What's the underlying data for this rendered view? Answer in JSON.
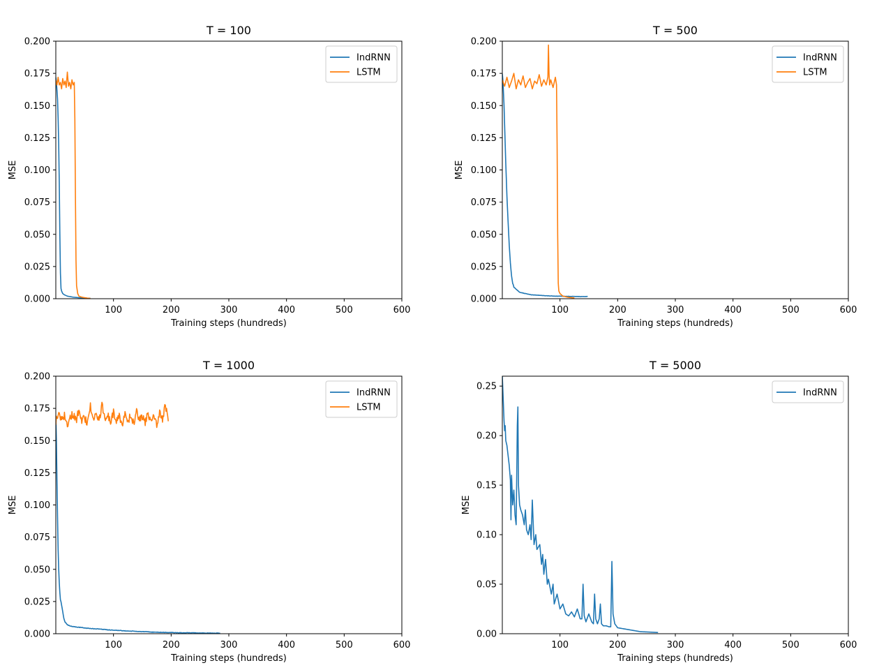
{
  "chart_data": [
    {
      "type": "line",
      "title": "T = 100",
      "xlabel": "Training steps (hundreds)",
      "ylabel": "MSE",
      "xlim": [
        0,
        600
      ],
      "ylim": [
        0,
        0.2
      ],
      "xticks": [
        100,
        200,
        300,
        400,
        500,
        600
      ],
      "xtick_labels": [
        "100",
        "200",
        "300",
        "400",
        "500",
        "600"
      ],
      "yticks": [
        0,
        0.025,
        0.05,
        0.075,
        0.1,
        0.125,
        0.15,
        0.175,
        0.2
      ],
      "ytick_labels": [
        "0.000",
        "0.025",
        "0.050",
        "0.075",
        "0.100",
        "0.125",
        "0.150",
        "0.175",
        "0.200"
      ],
      "legend": "top-right",
      "series": [
        {
          "name": "IndRNN",
          "color": "#1f77b4",
          "x": [
            0,
            1,
            2,
            3,
            4,
            5,
            6,
            7,
            8,
            9,
            10,
            11,
            12,
            15,
            20,
            25,
            30,
            40,
            50,
            60
          ],
          "y": [
            0.172,
            0.168,
            0.162,
            0.155,
            0.14,
            0.12,
            0.09,
            0.05,
            0.02,
            0.008,
            0.006,
            0.005,
            0.004,
            0.003,
            0.002,
            0.0016,
            0.0012,
            0.0008,
            0.0005,
            0.0003
          ],
          "noise": 0.0
        },
        {
          "name": "LSTM",
          "color": "#ff7f0e",
          "x": [
            0,
            2,
            4,
            6,
            8,
            10,
            12,
            14,
            16,
            18,
            20,
            22,
            24,
            26,
            28,
            30,
            32,
            33,
            34,
            35,
            36,
            38,
            40,
            45,
            50,
            55,
            60
          ],
          "y": [
            0.17,
            0.166,
            0.172,
            0.166,
            0.168,
            0.163,
            0.171,
            0.166,
            0.169,
            0.164,
            0.176,
            0.165,
            0.168,
            0.163,
            0.17,
            0.166,
            0.168,
            0.14,
            0.08,
            0.03,
            0.01,
            0.004,
            0.002,
            0.0012,
            0.0008,
            0.0004,
            0.0002
          ],
          "noise": 0.0
        }
      ]
    },
    {
      "type": "line",
      "title": "T = 500",
      "xlabel": "Training steps (hundreds)",
      "ylabel": "MSE",
      "xlim": [
        0,
        600
      ],
      "ylim": [
        0,
        0.2
      ],
      "xticks": [
        100,
        200,
        300,
        400,
        500,
        600
      ],
      "xtick_labels": [
        "100",
        "200",
        "300",
        "400",
        "500",
        "600"
      ],
      "yticks": [
        0,
        0.025,
        0.05,
        0.075,
        0.1,
        0.125,
        0.15,
        0.175,
        0.2
      ],
      "ytick_labels": [
        "0.000",
        "0.025",
        "0.050",
        "0.075",
        "0.100",
        "0.125",
        "0.150",
        "0.175",
        "0.200"
      ],
      "legend": "top-right",
      "series": [
        {
          "name": "IndRNN",
          "color": "#1f77b4",
          "x": [
            0,
            1,
            2,
            3,
            4,
            5,
            6,
            8,
            10,
            12,
            14,
            16,
            18,
            20,
            25,
            30,
            40,
            50,
            60,
            70,
            80,
            90,
            100,
            110,
            120,
            130,
            140,
            148
          ],
          "y": [
            0.175,
            0.17,
            0.16,
            0.15,
            0.135,
            0.12,
            0.105,
            0.08,
            0.06,
            0.042,
            0.028,
            0.018,
            0.012,
            0.009,
            0.007,
            0.005,
            0.004,
            0.003,
            0.0028,
            0.0025,
            0.0022,
            0.002,
            0.002,
            0.0018,
            0.0018,
            0.0017,
            0.0017,
            0.0017
          ],
          "noise": 0.0004
        },
        {
          "name": "LSTM",
          "color": "#ff7f0e",
          "x": [
            0,
            4,
            8,
            12,
            16,
            20,
            24,
            28,
            32,
            36,
            40,
            44,
            48,
            52,
            56,
            60,
            64,
            68,
            72,
            76,
            79,
            80,
            81,
            82,
            84,
            88,
            92,
            94,
            95,
            96,
            97,
            98,
            100,
            105,
            110,
            115,
            120,
            125
          ],
          "y": [
            0.17,
            0.165,
            0.172,
            0.164,
            0.169,
            0.175,
            0.163,
            0.17,
            0.166,
            0.173,
            0.164,
            0.168,
            0.171,
            0.163,
            0.169,
            0.167,
            0.174,
            0.165,
            0.17,
            0.166,
            0.172,
            0.197,
            0.175,
            0.166,
            0.17,
            0.164,
            0.172,
            0.166,
            0.12,
            0.05,
            0.012,
            0.006,
            0.004,
            0.002,
            0.0015,
            0.001,
            0.0008,
            0.0006
          ],
          "noise": 0.0
        }
      ]
    },
    {
      "type": "line",
      "title": "T = 1000",
      "xlabel": "Training steps (hundreds)",
      "ylabel": "MSE",
      "xlim": [
        0,
        600
      ],
      "ylim": [
        0,
        0.2
      ],
      "xticks": [
        100,
        200,
        300,
        400,
        500,
        600
      ],
      "xtick_labels": [
        "100",
        "200",
        "300",
        "400",
        "500",
        "600"
      ],
      "yticks": [
        0,
        0.025,
        0.05,
        0.075,
        0.1,
        0.125,
        0.15,
        0.175,
        0.2
      ],
      "ytick_labels": [
        "0.000",
        "0.025",
        "0.050",
        "0.075",
        "0.100",
        "0.125",
        "0.150",
        "0.175",
        "0.200"
      ],
      "legend": "top-right",
      "series": [
        {
          "name": "IndRNN",
          "color": "#1f77b4",
          "x": [
            0,
            1,
            2,
            3,
            4,
            5,
            6,
            7,
            8,
            10,
            12,
            14,
            16,
            20,
            25,
            30,
            40,
            50,
            60,
            70,
            80,
            90,
            100,
            110,
            120,
            130,
            140,
            150,
            160,
            170,
            180,
            190,
            200,
            220,
            240,
            260,
            285
          ],
          "y": [
            0.17,
            0.15,
            0.12,
            0.09,
            0.065,
            0.05,
            0.04,
            0.032,
            0.027,
            0.022,
            0.017,
            0.012,
            0.009,
            0.007,
            0.006,
            0.0055,
            0.005,
            0.0045,
            0.004,
            0.0038,
            0.0035,
            0.003,
            0.0028,
            0.0025,
            0.0022,
            0.002,
            0.0018,
            0.0016,
            0.0014,
            0.0012,
            0.0011,
            0.001,
            0.0009,
            0.0007,
            0.0006,
            0.0005,
            0.0004
          ],
          "noise": 0.0007
        },
        {
          "name": "LSTM",
          "color": "#ff7f0e",
          "x": [
            0,
            5,
            10,
            15,
            20,
            25,
            30,
            35,
            40,
            45,
            50,
            55,
            60,
            65,
            70,
            75,
            80,
            85,
            90,
            95,
            100,
            105,
            110,
            115,
            120,
            125,
            130,
            135,
            140,
            145,
            150,
            155,
            160,
            165,
            170,
            175,
            180,
            185,
            190,
            195
          ],
          "y": [
            0.165,
            0.172,
            0.166,
            0.17,
            0.163,
            0.168,
            0.171,
            0.165,
            0.174,
            0.166,
            0.168,
            0.163,
            0.177,
            0.166,
            0.171,
            0.165,
            0.178,
            0.167,
            0.17,
            0.164,
            0.172,
            0.166,
            0.169,
            0.162,
            0.171,
            0.165,
            0.17,
            0.163,
            0.172,
            0.166,
            0.169,
            0.164,
            0.171,
            0.166,
            0.17,
            0.163,
            0.171,
            0.167,
            0.177,
            0.165
          ],
          "noise": 0.003
        }
      ]
    },
    {
      "type": "line",
      "title": "T = 5000",
      "xlabel": "Training steps (hundreds)",
      "ylabel": "MSE",
      "xlim": [
        0,
        600
      ],
      "ylim": [
        0,
        0.26
      ],
      "xticks": [
        100,
        200,
        300,
        400,
        500,
        600
      ],
      "xtick_labels": [
        "100",
        "200",
        "300",
        "400",
        "500",
        "600"
      ],
      "yticks": [
        0,
        0.05,
        0.1,
        0.15,
        0.2,
        0.25
      ],
      "ytick_labels": [
        "0.00",
        "0.05",
        "0.10",
        "0.15",
        "0.20",
        "0.25"
      ],
      "legend": "top-right",
      "series": [
        {
          "name": "IndRNN",
          "color": "#1f77b4",
          "x": [
            0,
            1,
            2,
            3,
            4,
            5,
            6,
            8,
            10,
            12,
            14,
            15,
            16,
            18,
            20,
            22,
            24,
            26,
            27,
            28,
            30,
            32,
            35,
            38,
            40,
            42,
            45,
            48,
            50,
            52,
            55,
            58,
            60,
            65,
            68,
            70,
            72,
            75,
            78,
            80,
            85,
            88,
            90,
            95,
            100,
            105,
            110,
            115,
            120,
            125,
            130,
            135,
            138,
            140,
            142,
            145,
            150,
            155,
            158,
            160,
            162,
            165,
            168,
            170,
            172,
            175,
            180,
            185,
            188,
            190,
            192,
            195,
            200,
            210,
            220,
            230,
            240,
            250,
            260,
            270
          ],
          "y": [
            0.26,
            0.245,
            0.23,
            0.215,
            0.205,
            0.21,
            0.195,
            0.19,
            0.18,
            0.17,
            0.155,
            0.115,
            0.16,
            0.13,
            0.145,
            0.12,
            0.11,
            0.21,
            0.229,
            0.15,
            0.13,
            0.125,
            0.12,
            0.11,
            0.125,
            0.105,
            0.1,
            0.11,
            0.095,
            0.135,
            0.09,
            0.1,
            0.085,
            0.09,
            0.07,
            0.08,
            0.06,
            0.075,
            0.05,
            0.055,
            0.04,
            0.05,
            0.03,
            0.04,
            0.025,
            0.03,
            0.02,
            0.018,
            0.022,
            0.017,
            0.025,
            0.015,
            0.015,
            0.05,
            0.018,
            0.012,
            0.02,
            0.012,
            0.01,
            0.04,
            0.015,
            0.01,
            0.015,
            0.03,
            0.01,
            0.008,
            0.008,
            0.007,
            0.007,
            0.073,
            0.02,
            0.01,
            0.006,
            0.005,
            0.004,
            0.003,
            0.002,
            0.0018,
            0.0015,
            0.0012
          ],
          "noise": 0.0
        }
      ]
    }
  ]
}
